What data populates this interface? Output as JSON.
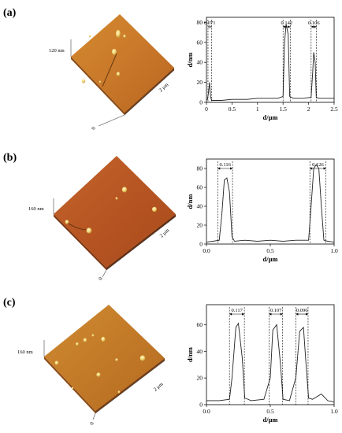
{
  "panels": [
    {
      "label": "(a)",
      "afm": {
        "height_label": "120 nm",
        "axis_label": "2 μm",
        "origin_label": "0"
      },
      "chart_data": {
        "type": "line",
        "xlabel": "d/μm",
        "ylabel": "d/nm",
        "xlim": [
          0,
          2.5
        ],
        "ylim": [
          0,
          85
        ],
        "xticks": [
          0,
          0.5,
          1,
          1.5,
          2,
          2.5
        ],
        "xtick_labels": [
          "0",
          "0.5",
          "1",
          "1.5",
          "2",
          "2.5"
        ],
        "yticks": [
          0,
          20,
          40,
          60,
          80
        ],
        "series": [
          {
            "x": [
              0,
              0.02,
              0.04,
              0.06,
              0.08,
              0.1,
              0.3,
              0.5,
              0.8,
              1.0,
              1.2,
              1.4,
              1.5,
              1.53,
              1.56,
              1.6,
              1.63,
              1.7,
              1.9,
              2.05,
              2.08,
              2.1,
              2.13,
              2.15,
              2.2,
              2.3,
              2.4,
              2.5
            ],
            "y": [
              3,
              3,
              10,
              20,
              6,
              2,
              2,
              3,
              3,
              4,
              4,
              4,
              6,
              60,
              78,
              68,
              6,
              4,
              4,
              5,
              30,
              50,
              40,
              5,
              4,
              4,
              4,
              4
            ]
          }
        ],
        "annotations": [
          {
            "text": "0.071",
            "x1": 0.03,
            "x2": 0.1
          },
          {
            "text": "0.142",
            "x1": 1.5,
            "x2": 1.642
          },
          {
            "text": "0.106",
            "x1": 2.05,
            "x2": 2.156
          }
        ]
      }
    },
    {
      "label": "(b)",
      "afm": {
        "height_label": "160 nm",
        "axis_label": "2 μm",
        "origin_label": "0"
      },
      "chart_data": {
        "type": "line",
        "xlabel": "d/μm",
        "ylabel": "d/nm",
        "xlim": [
          0,
          1.0
        ],
        "ylim": [
          0,
          90
        ],
        "xticks": [
          0,
          0.5,
          1.0
        ],
        "xtick_labels": [
          "0.0",
          "0.5",
          "1.0"
        ],
        "yticks": [
          0,
          20,
          40,
          60,
          80
        ],
        "series": [
          {
            "x": [
              0,
              0.05,
              0.1,
              0.12,
              0.14,
              0.16,
              0.18,
              0.2,
              0.22,
              0.3,
              0.4,
              0.5,
              0.6,
              0.7,
              0.8,
              0.82,
              0.84,
              0.86,
              0.88,
              0.9,
              0.92,
              0.95,
              1.0
            ],
            "y": [
              2,
              3,
              4,
              30,
              68,
              70,
              55,
              8,
              3,
              4,
              3,
              4,
              3,
              4,
              4,
              40,
              80,
              84,
              80,
              40,
              4,
              3,
              2
            ]
          }
        ],
        "annotations": [
          {
            "text": "0.116",
            "x1": 0.088,
            "x2": 0.204
          },
          {
            "text": "0.126",
            "x1": 0.81,
            "x2": 0.936
          }
        ]
      }
    },
    {
      "label": "(c)",
      "afm": {
        "height_label": "160 nm",
        "axis_label": "2 μm",
        "origin_label": "0"
      },
      "chart_data": {
        "type": "line",
        "xlabel": "d/μm",
        "ylabel": "d/nm",
        "xlim": [
          0,
          1.0
        ],
        "ylim": [
          0,
          75
        ],
        "xticks": [
          0,
          0.5,
          1.0
        ],
        "xtick_labels": [
          "0.0",
          "0.5",
          "1.0"
        ],
        "yticks": [
          0,
          20,
          40,
          60
        ],
        "series": [
          {
            "x": [
              0,
              0.1,
              0.18,
              0.2,
              0.23,
              0.25,
              0.28,
              0.3,
              0.35,
              0.45,
              0.5,
              0.52,
              0.55,
              0.58,
              0.6,
              0.65,
              0.7,
              0.73,
              0.76,
              0.78,
              0.8,
              0.83,
              0.9,
              0.95,
              1.0
            ],
            "y": [
              3,
              3,
              4,
              20,
              58,
              61,
              35,
              5,
              3,
              4,
              20,
              56,
              60,
              30,
              4,
              3,
              20,
              55,
              58,
              30,
              5,
              4,
              8,
              3,
              2
            ]
          }
        ],
        "annotations": [
          {
            "text": "0.117",
            "x1": 0.18,
            "x2": 0.297
          },
          {
            "text": "0.107",
            "x1": 0.49,
            "x2": 0.597
          },
          {
            "text": "0.096",
            "x1": 0.7,
            "x2": 0.796
          }
        ]
      }
    }
  ]
}
